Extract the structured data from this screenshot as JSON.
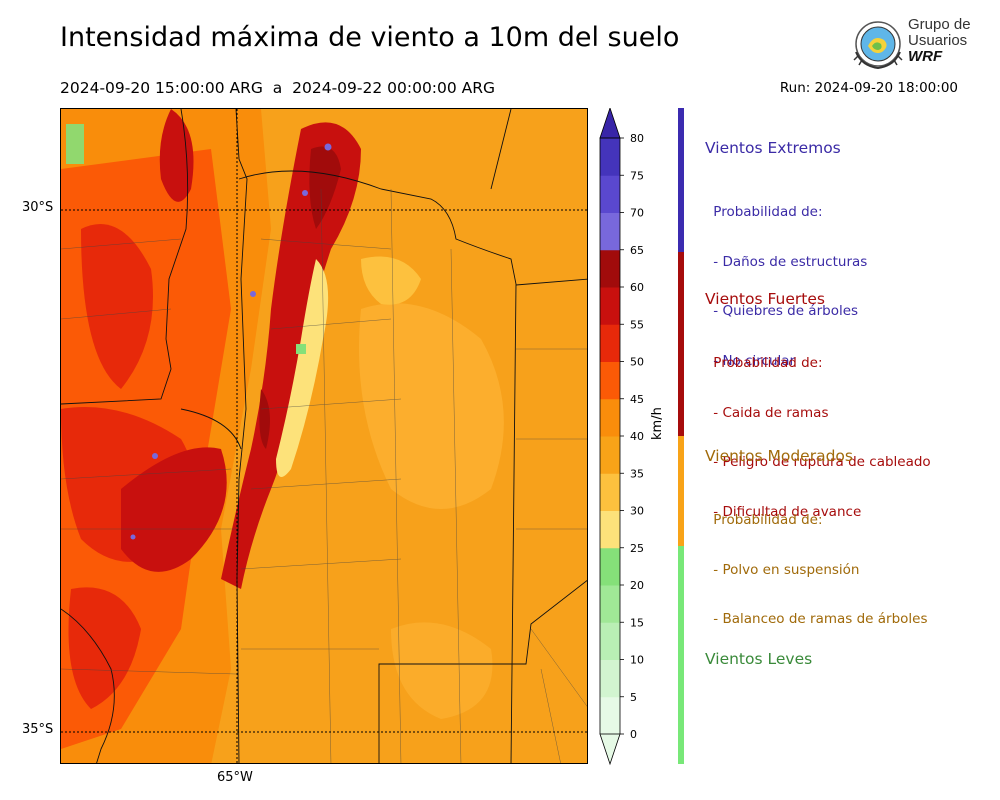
{
  "title": "Intensidad máxima de viento a 10m del suelo",
  "period": "2024-09-20 15:00:00 ARG  a  2024-09-22 00:00:00 ARG",
  "run": "Run: 2024-09-20 18:00:00",
  "logo": {
    "line1": "Grupo de",
    "line2": "Usuarios",
    "line3": "WRF"
  },
  "map": {
    "lat_labels": [
      "30°S",
      "35°S"
    ],
    "lon_labels": [
      "65°W"
    ]
  },
  "colorbar": {
    "unit": "km/h",
    "ticks": [
      "0",
      "5",
      "10",
      "15",
      "20",
      "25",
      "30",
      "35",
      "40",
      "45",
      "50",
      "55",
      "60",
      "65",
      "70",
      "75",
      "80"
    ],
    "colors": [
      "#e6fae6",
      "#d2f5d0",
      "#b9efb4",
      "#a0e896",
      "#85e079",
      "#fde27a",
      "#fdc13e",
      "#f8a318",
      "#f98d0b",
      "#fb5a06",
      "#e7290a",
      "#c8100e",
      "#a10b0b",
      "#7868dc",
      "#5a48cf",
      "#4434bb",
      "#3825a8"
    ]
  },
  "categories": [
    {
      "title": "Vientos Extremos",
      "color": "#3b2ba6",
      "sub": [
        " Probabilidad de:",
        " - Daños de estructuras",
        " - Quiebres de árboles",
        " - No circular"
      ]
    },
    {
      "title": "Vientos Fuertes",
      "color": "#a60c0c",
      "sub": [
        " Probabilidad de:",
        " - Caida de ramas",
        " - Peligro de ruptura de cableado",
        " - Dificultad de avance"
      ]
    },
    {
      "title": "Vientos Moderados",
      "color": "#a06a0a",
      "sub": [
        " Probabilidad de:",
        " - Polvo en suspensión",
        " - Balanceo de ramas de árboles"
      ]
    },
    {
      "title": "Vientos Leves",
      "color": "#3a8a3a",
      "sub": []
    }
  ],
  "category_bar_colors": [
    "#3b2bb0",
    "#a60c0c",
    "#f8a318",
    "#78e878"
  ]
}
